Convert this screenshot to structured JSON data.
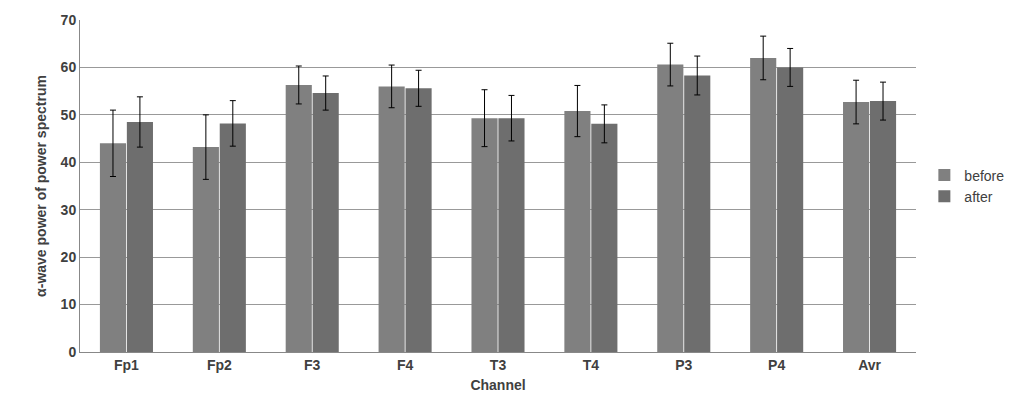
{
  "chart_data": {
    "type": "bar",
    "x_label": "Channel",
    "y_label": "α-wave power of power spectrum",
    "categories": [
      "Fp1",
      "Fp2",
      "F3",
      "F4",
      "T3",
      "T4",
      "P3",
      "P4",
      "Avr"
    ],
    "series": [
      {
        "name": "before",
        "color": "#808080",
        "values": [
          44.0,
          43.2,
          56.3,
          56.0,
          49.3,
          50.8,
          60.6,
          62.0,
          52.7
        ],
        "errors": [
          7.0,
          6.8,
          4.0,
          4.5,
          6.0,
          5.4,
          4.5,
          4.6,
          4.6
        ]
      },
      {
        "name": "after",
        "color": "#6e6e6e",
        "values": [
          48.5,
          48.2,
          54.6,
          55.6,
          49.3,
          48.1,
          58.3,
          60.0,
          52.9
        ],
        "errors": [
          5.3,
          4.8,
          3.6,
          3.8,
          4.8,
          4.0,
          4.1,
          4.0,
          4.0
        ]
      }
    ],
    "ylim": [
      0,
      70
    ],
    "yticks": [
      0,
      10,
      20,
      30,
      40,
      50,
      60,
      70
    ],
    "grid": true,
    "legend": "right"
  }
}
